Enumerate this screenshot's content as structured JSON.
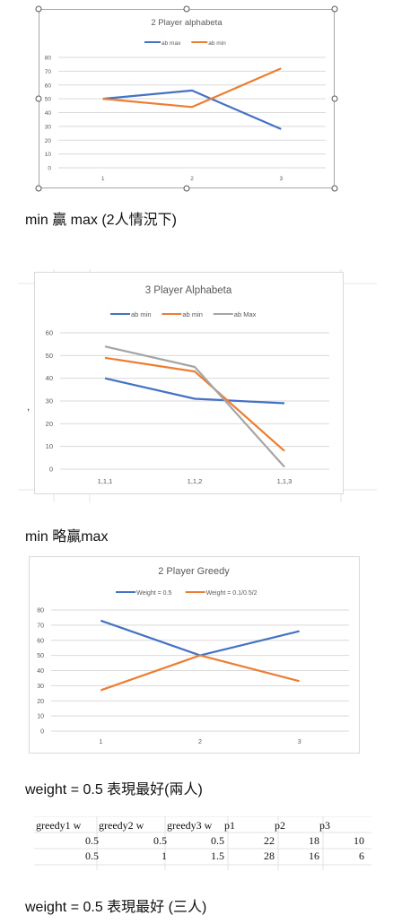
{
  "charts": [
    {
      "type": "line",
      "title": "2 Player alphabeta",
      "categories": [
        "1",
        "2",
        "3"
      ],
      "series": [
        {
          "name": "ab max",
          "color": "#4472C4",
          "values": [
            50,
            56,
            28
          ]
        },
        {
          "name": "ab min",
          "color": "#ED7D31",
          "values": [
            50,
            44,
            72
          ]
        }
      ],
      "yticks": [
        "0",
        "10",
        "20",
        "30",
        "40",
        "50",
        "60",
        "70",
        "80"
      ],
      "ylim": [
        0,
        80
      ]
    },
    {
      "type": "line",
      "title": "3 Player Alphabeta",
      "categories": [
        "1,1,1",
        "1,1,2",
        "1,1,3"
      ],
      "series": [
        {
          "name": "ab min",
          "color": "#4472C4",
          "values": [
            40,
            31,
            29
          ]
        },
        {
          "name": "ab min",
          "color": "#ED7D31",
          "values": [
            49,
            43,
            8
          ]
        },
        {
          "name": "ab Max",
          "color": "#A5A5A5",
          "values": [
            54,
            45,
            1
          ]
        }
      ],
      "yticks": [
        "0",
        "10",
        "20",
        "30",
        "40",
        "50",
        "60"
      ],
      "ylim": [
        0,
        60
      ]
    },
    {
      "type": "line",
      "title": "2 Player Greedy",
      "categories": [
        "1",
        "2",
        "3"
      ],
      "series": [
        {
          "name": "Weight = 0.5",
          "color": "#4472C4",
          "values": [
            73,
            50,
            66
          ]
        },
        {
          "name": "Weight = 0.1/0.5/2",
          "color": "#ED7D31",
          "values": [
            27,
            50,
            33
          ]
        }
      ],
      "yticks": [
        "0",
        "10",
        "20",
        "30",
        "40",
        "50",
        "60",
        "70",
        "80"
      ],
      "ylim": [
        0,
        80
      ]
    }
  ],
  "chart_data": [
    {
      "type": "line",
      "title": "2 Player alphabeta",
      "categories": [
        "1",
        "2",
        "3"
      ],
      "series": [
        {
          "name": "ab max",
          "values": [
            50,
            56,
            28
          ]
        },
        {
          "name": "ab min",
          "values": [
            50,
            44,
            72
          ]
        }
      ],
      "ylim": [
        0,
        80
      ]
    },
    {
      "type": "line",
      "title": "3 Player Alphabeta",
      "categories": [
        "1,1,1",
        "1,1,2",
        "1,1,3"
      ],
      "series": [
        {
          "name": "ab min",
          "values": [
            40,
            31,
            29
          ]
        },
        {
          "name": "ab min",
          "values": [
            49,
            43,
            8
          ]
        },
        {
          "name": "ab Max",
          "values": [
            54,
            45,
            1
          ]
        }
      ],
      "ylim": [
        0,
        60
      ]
    },
    {
      "type": "line",
      "title": "2 Player Greedy",
      "categories": [
        "1",
        "2",
        "3"
      ],
      "series": [
        {
          "name": "Weight = 0.5",
          "values": [
            73,
            50,
            66
          ]
        },
        {
          "name": "Weight = 0.1/0.5/2",
          "values": [
            27,
            50,
            33
          ]
        }
      ],
      "ylim": [
        0,
        80
      ]
    }
  ],
  "captions": {
    "c1": "min 贏 max (2人情況下)",
    "c2": "min 略贏max",
    "c3": "weight = 0.5 表現最好(兩人)",
    "c4": "weight = 0.5 表現最好 (三人)"
  },
  "stray_mark": ",",
  "table": {
    "headers": [
      "greedy1 w",
      "greedy2 w",
      "greedy3 w",
      "p1",
      "p2",
      "p3"
    ],
    "rows": [
      [
        "0.5",
        "0.5",
        "0.5",
        "22",
        "18",
        "10"
      ],
      [
        "0.5",
        "1",
        "1.5",
        "28",
        "16",
        "6"
      ]
    ]
  }
}
